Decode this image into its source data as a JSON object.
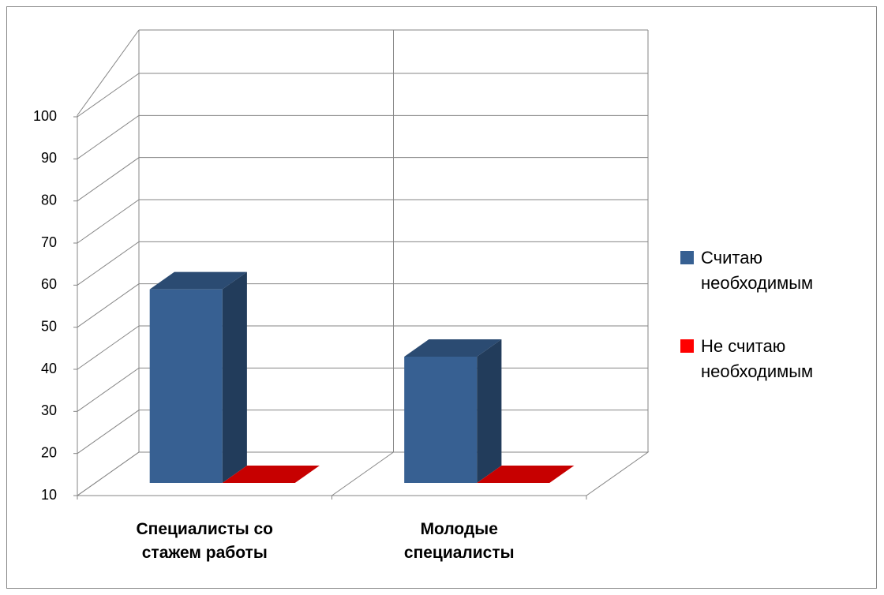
{
  "chart_data": {
    "type": "bar3d",
    "categories": [
      "Специалисты со стажем работы",
      "Молодые специалисты"
    ],
    "series": [
      {
        "name": "Считаю необходимым",
        "color": "#376092",
        "values": [
          56,
          40
        ]
      },
      {
        "name": "Не считаю необходимым",
        "color": "#ff0000",
        "values": [
          10,
          10
        ]
      }
    ],
    "ylim": [
      10,
      100
    ],
    "yticks": [
      10,
      20,
      30,
      40,
      50,
      60,
      70,
      80,
      90,
      100
    ],
    "grid": true,
    "legend": "right"
  }
}
